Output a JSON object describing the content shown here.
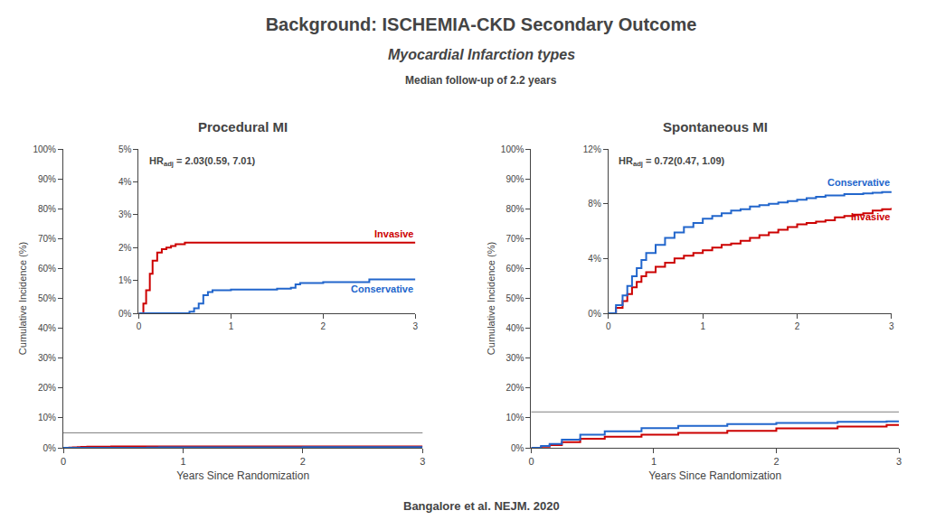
{
  "title": "Background: ISCHEMIA-CKD Secondary Outcome",
  "subtitle": [
    "Myocardial Infarction types",
    "Median follow-up of 2.2 years"
  ],
  "annotations": [
    "Bangalore et al. NEJM. 2020"
  ],
  "chart_data": [
    {
      "type": "line",
      "line_style": "step",
      "title": "Procedural MI",
      "xlabel": "Years Since Randomization",
      "ylabel": "Cumulative Incidence (%)",
      "xlim": [
        0,
        3
      ],
      "xticks": [
        0,
        1,
        2,
        3
      ],
      "ylim": [
        0,
        100
      ],
      "yticks": [
        {
          "value": 0,
          "label": "0%"
        },
        {
          "value": 10,
          "label": "10%"
        },
        {
          "value": 20,
          "label": "20%"
        },
        {
          "value": 30,
          "label": "30%"
        },
        {
          "value": 40,
          "label": "40%"
        },
        {
          "value": 50,
          "label": "50%"
        },
        {
          "value": 60,
          "label": "60%"
        },
        {
          "value": 70,
          "label": "70%"
        },
        {
          "value": 80,
          "label": "80%"
        },
        {
          "value": 90,
          "label": "90%"
        },
        {
          "value": 100,
          "label": "100%"
        }
      ],
      "grid": false,
      "series": [
        {
          "color": "#cc0000",
          "x": [
            0,
            0.05,
            0.08,
            0.12,
            0.15,
            0.2,
            0.25,
            0.3,
            0.35,
            0.4,
            0.5,
            3.0
          ],
          "values": [
            0,
            0.06,
            0.14,
            0.24,
            0.32,
            0.37,
            0.39,
            0.4,
            0.41,
            0.42,
            0.43,
            0.43
          ]
        },
        {
          "color": "#2266cc",
          "x": [
            0,
            0.5,
            0.6,
            0.7,
            0.8,
            1.0,
            1.5,
            1.75,
            2.0,
            2.5,
            3.0
          ],
          "values": [
            0,
            0.0,
            0.03,
            0.11,
            0.14,
            0.15,
            0.15,
            0.18,
            0.19,
            0.21,
            0.21
          ]
        }
      ]
    },
    {
      "type": "line",
      "line_style": "step",
      "xlim": [
        0,
        3
      ],
      "xticks": [
        0,
        1,
        2,
        3
      ],
      "ylim": [
        0,
        5
      ],
      "yticks": [
        {
          "value": 0,
          "label": "0%"
        },
        {
          "value": 1,
          "label": "1%"
        },
        {
          "value": 2,
          "label": "2%"
        },
        {
          "value": 3,
          "label": "3%"
        },
        {
          "value": 4,
          "label": "4%"
        },
        {
          "value": 5,
          "label": "5%"
        }
      ],
      "grid": false,
      "annotations": [
        {
          "text": "HR",
          "subscript": "adj",
          "after": "= 2.03(0.59, 7.01)"
        }
      ],
      "series": [
        {
          "name": "Invasive",
          "color": "#cc0000",
          "x": [
            0,
            0.05,
            0.08,
            0.12,
            0.15,
            0.2,
            0.25,
            0.3,
            0.35,
            0.4,
            0.5,
            3.0
          ],
          "values": [
            0,
            0.3,
            0.7,
            1.2,
            1.6,
            1.85,
            1.95,
            2.0,
            2.05,
            2.1,
            2.15,
            2.15
          ]
        },
        {
          "name": "Conservative",
          "color": "#2266cc",
          "x": [
            0,
            0.5,
            0.55,
            0.6,
            0.65,
            0.7,
            0.75,
            0.8,
            1.0,
            1.5,
            1.65,
            1.7,
            1.75,
            2.0,
            2.5,
            3.0
          ],
          "values": [
            0,
            0.0,
            0.05,
            0.15,
            0.3,
            0.55,
            0.65,
            0.7,
            0.72,
            0.75,
            0.78,
            0.88,
            0.92,
            0.95,
            1.03,
            1.03
          ]
        }
      ]
    },
    {
      "type": "line",
      "line_style": "step",
      "title": "Spontaneous MI",
      "xlabel": "Years Since Randomization",
      "ylabel": "Cumulative Incidence (%)",
      "xlim": [
        0,
        3
      ],
      "xticks": [
        0,
        1,
        2,
        3
      ],
      "ylim": [
        0,
        100
      ],
      "yticks": [
        {
          "value": 0,
          "label": "0%"
        },
        {
          "value": 10,
          "label": "10%"
        },
        {
          "value": 20,
          "label": "20%"
        },
        {
          "value": 30,
          "label": "30%"
        },
        {
          "value": 40,
          "label": "40%"
        },
        {
          "value": 50,
          "label": "50%"
        },
        {
          "value": 60,
          "label": "60%"
        },
        {
          "value": 70,
          "label": "70%"
        },
        {
          "value": 80,
          "label": "80%"
        },
        {
          "value": 90,
          "label": "90%"
        },
        {
          "value": 100,
          "label": "100%"
        }
      ],
      "grid": false,
      "series": [
        {
          "color": "#cc0000",
          "x": [
            0,
            0.08,
            0.15,
            0.25,
            0.4,
            0.6,
            0.9,
            1.2,
            1.6,
            2.0,
            2.5,
            2.9,
            3.0
          ],
          "values": [
            0,
            0.4,
            0.9,
            1.9,
            3.0,
            3.7,
            4.4,
            5.0,
            5.7,
            6.5,
            7.1,
            7.6,
            7.7
          ]
        },
        {
          "color": "#2266cc",
          "x": [
            0,
            0.08,
            0.15,
            0.25,
            0.4,
            0.6,
            0.9,
            1.2,
            1.6,
            2.0,
            2.5,
            2.9,
            3.0
          ],
          "values": [
            0,
            0.6,
            1.3,
            2.7,
            4.4,
            5.5,
            6.6,
            7.3,
            7.9,
            8.3,
            8.7,
            8.85,
            8.9
          ]
        }
      ]
    },
    {
      "type": "line",
      "line_style": "step",
      "xlim": [
        0,
        3
      ],
      "xticks": [
        0,
        1,
        2,
        3
      ],
      "ylim": [
        0,
        12
      ],
      "yticks": [
        {
          "value": 0,
          "label": "0%"
        },
        {
          "value": 4,
          "label": "4%"
        },
        {
          "value": 8,
          "label": "8%"
        },
        {
          "value": 12,
          "label": "12%"
        }
      ],
      "grid": false,
      "annotations": [
        {
          "text": "HR",
          "subscript": "adj",
          "after": "= 0.72(0.47, 1.09)"
        }
      ],
      "series": [
        {
          "name": "Invasive",
          "color": "#cc0000",
          "x": [
            0,
            0.08,
            0.15,
            0.2,
            0.25,
            0.3,
            0.35,
            0.4,
            0.5,
            0.6,
            0.7,
            0.8,
            0.9,
            1.0,
            1.1,
            1.2,
            1.3,
            1.4,
            1.5,
            1.6,
            1.7,
            1.8,
            1.9,
            2.0,
            2.1,
            2.2,
            2.3,
            2.4,
            2.5,
            2.6,
            2.7,
            2.8,
            2.9,
            3.0
          ],
          "values": [
            0,
            0.4,
            0.9,
            1.4,
            1.9,
            2.3,
            2.7,
            3.0,
            3.4,
            3.7,
            4.0,
            4.2,
            4.4,
            4.6,
            4.8,
            5.0,
            5.1,
            5.3,
            5.5,
            5.7,
            5.9,
            6.1,
            6.3,
            6.5,
            6.6,
            6.7,
            6.8,
            7.0,
            7.1,
            7.2,
            7.3,
            7.5,
            7.6,
            7.7
          ]
        },
        {
          "name": "Conservative",
          "color": "#2266cc",
          "x": [
            0,
            0.08,
            0.15,
            0.2,
            0.25,
            0.3,
            0.35,
            0.4,
            0.5,
            0.6,
            0.7,
            0.8,
            0.9,
            1.0,
            1.1,
            1.2,
            1.3,
            1.4,
            1.5,
            1.6,
            1.7,
            1.8,
            1.9,
            2.0,
            2.1,
            2.2,
            2.3,
            2.5,
            2.7,
            2.8,
            2.9,
            3.0
          ],
          "values": [
            0,
            0.6,
            1.3,
            2.0,
            2.7,
            3.3,
            3.9,
            4.4,
            5.0,
            5.5,
            5.9,
            6.3,
            6.6,
            6.9,
            7.1,
            7.3,
            7.5,
            7.6,
            7.8,
            7.9,
            8.0,
            8.1,
            8.2,
            8.3,
            8.4,
            8.5,
            8.6,
            8.7,
            8.75,
            8.8,
            8.85,
            8.9
          ]
        }
      ]
    }
  ]
}
